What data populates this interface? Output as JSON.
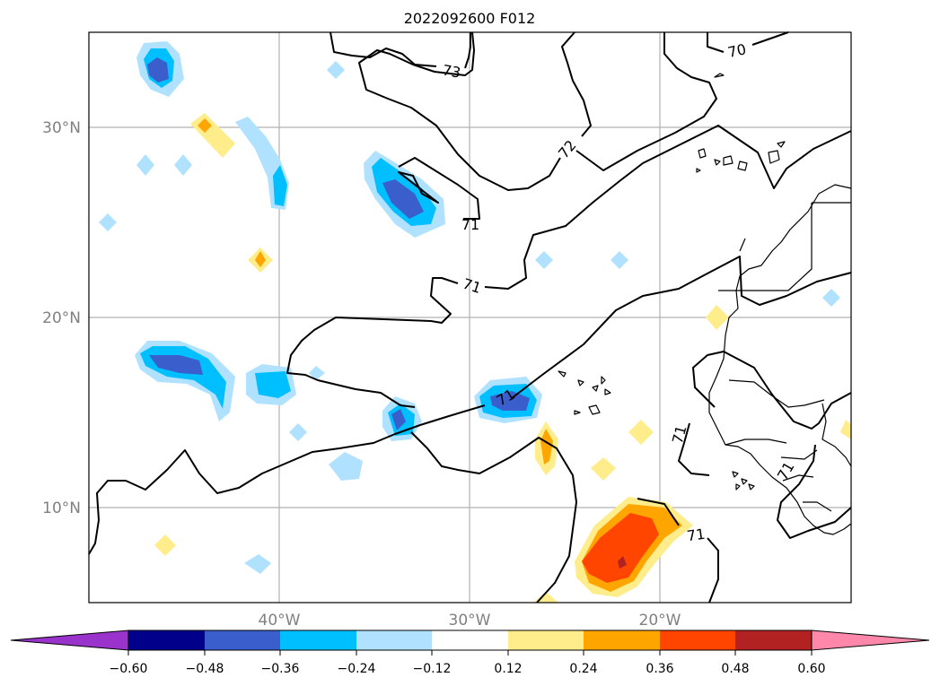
{
  "title": "2022092600 F012",
  "lat_labels": [
    "30°N",
    "20°N",
    "10°N"
  ],
  "lon_labels": [
    "40°W",
    "30°W",
    "20°W"
  ],
  "contour_labels": [
    "73",
    "72",
    "70",
    "71",
    "71",
    "71",
    "71",
    "71",
    "71"
  ],
  "colorbar": {
    "tick_labels": [
      "−0.60",
      "−0.48",
      "−0.36",
      "−0.24",
      "−0.12",
      "0.12",
      "0.24",
      "0.36",
      "0.48",
      "0.60"
    ],
    "colors": [
      "#9933cc",
      "#00008b",
      "#3a5fcd",
      "#00bfff",
      "#b0e2ff",
      "#ffffff",
      "#ffec8b",
      "#ffa500",
      "#ff4500",
      "#b22222",
      "#ff88aa"
    ]
  },
  "colors": {
    "very_light_blue": "#b0e2ff",
    "light_blue": "#00bfff",
    "mid_blue": "#3a5fcd",
    "yellow": "#ffec8b",
    "orange": "#ffa500",
    "red_orange": "#ff4500",
    "dark_red": "#b22222"
  }
}
